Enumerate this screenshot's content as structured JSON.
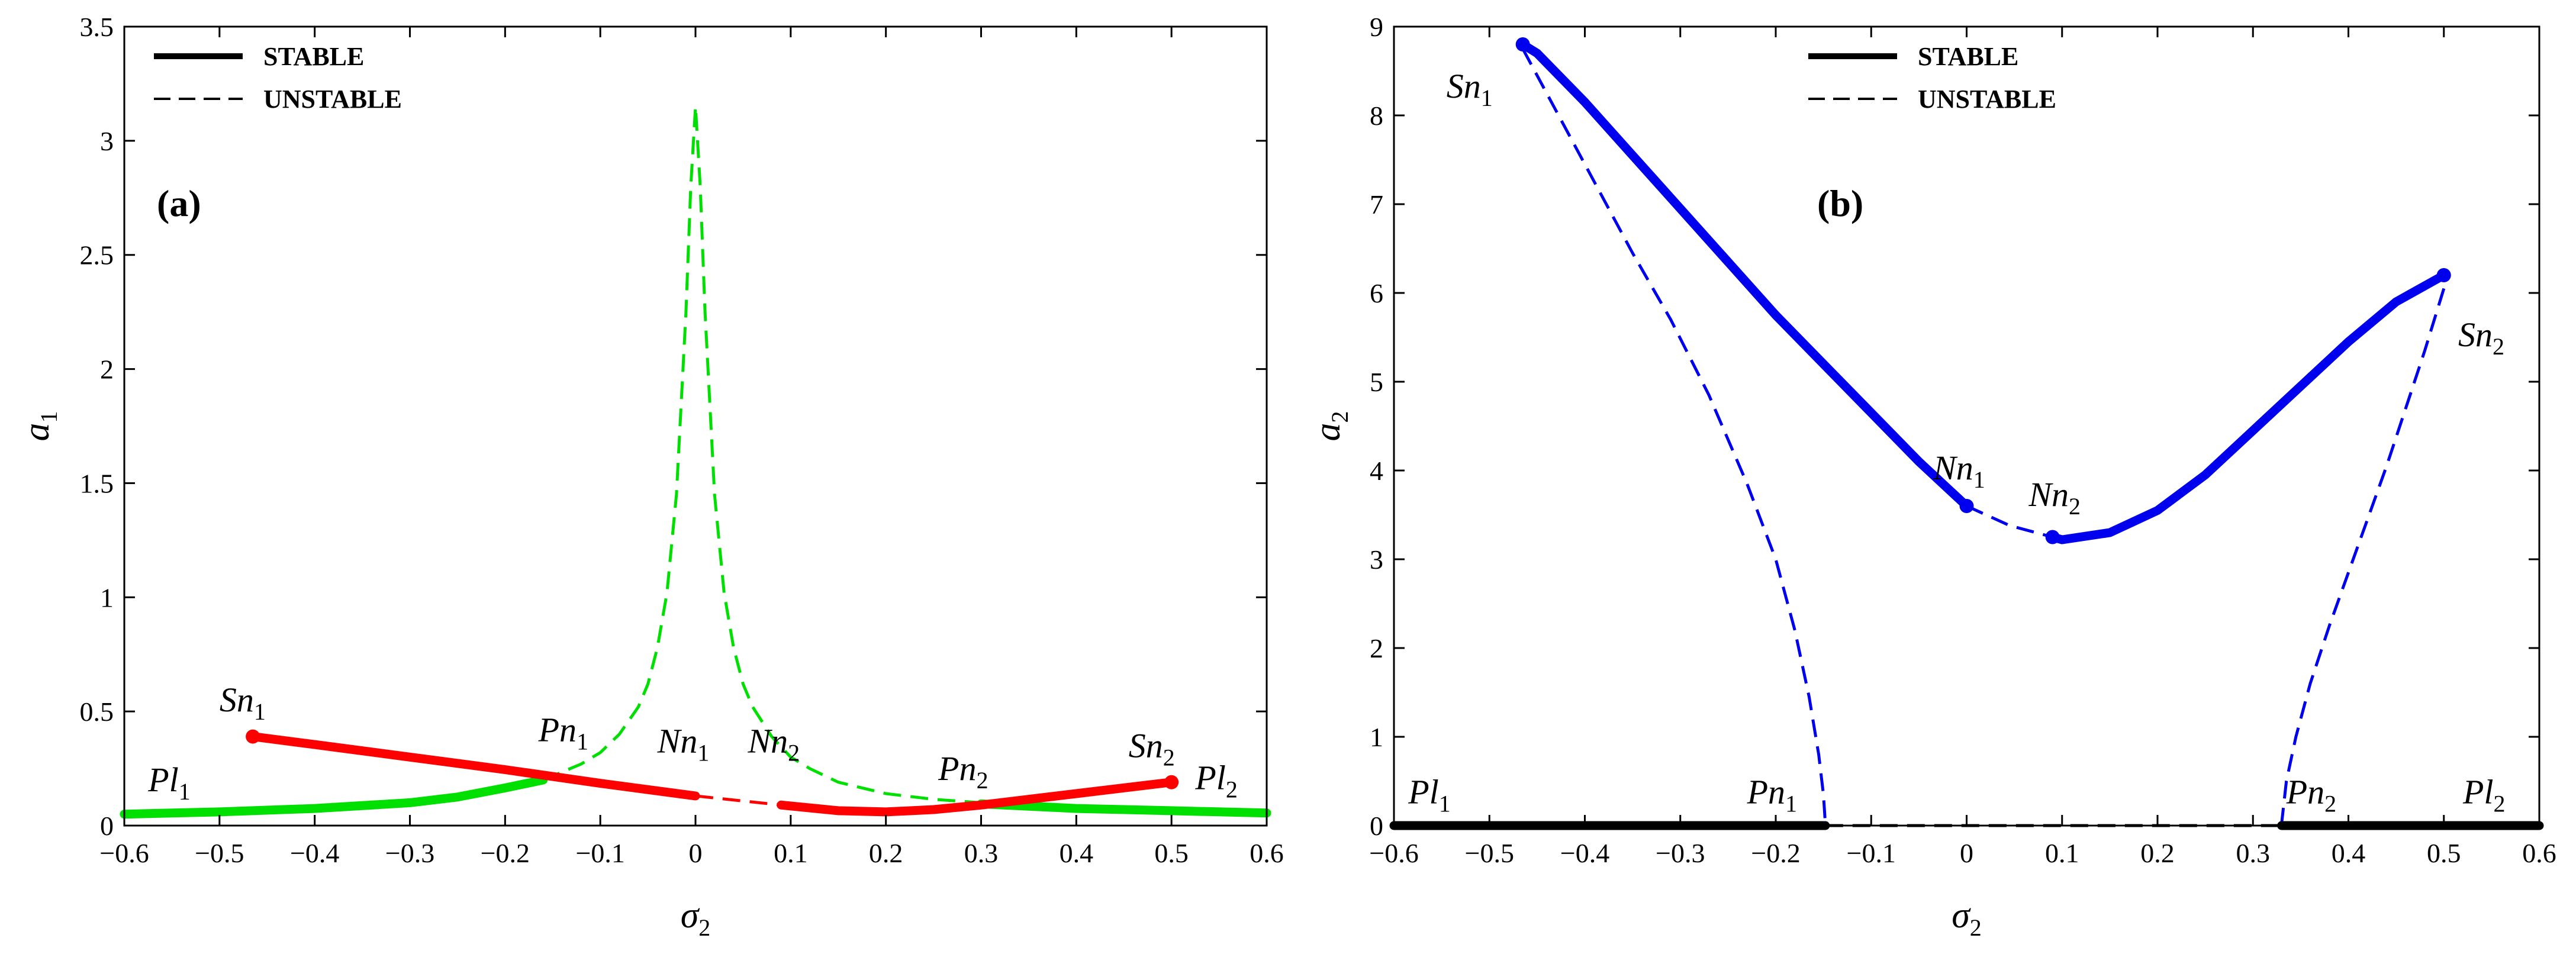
{
  "chart_data": [
    {
      "type": "line",
      "panel_label": "(a)",
      "xlabel": "σ",
      "xlabel_sub": "2",
      "ylabel": "a",
      "ylabel_sub": "1",
      "xlim": [
        -0.6,
        0.6
      ],
      "ylim": [
        0,
        3.5
      ],
      "xticks": [
        -0.6,
        -0.5,
        -0.4,
        -0.3,
        -0.2,
        -0.1,
        0,
        0.1,
        0.2,
        0.3,
        0.4,
        0.5,
        0.6
      ],
      "xtick_labels": [
        "−0.6",
        "−0.5",
        "−0.4",
        "−0.3",
        "−0.2",
        "−0.1",
        "0",
        "0.1",
        "0.2",
        "0.3",
        "0.4",
        "0.5",
        "0.6"
      ],
      "yticks": [
        0,
        0.5,
        1,
        1.5,
        2,
        2.5,
        3,
        3.5
      ],
      "ytick_labels": [
        "0",
        "0.5",
        "1",
        "1.5",
        "2",
        "2.5",
        "3",
        "3.5"
      ],
      "legend": [
        {
          "label": "STABLE",
          "style": "solid"
        },
        {
          "label": "UNSTABLE",
          "style": "dashed"
        }
      ],
      "series": [
        {
          "name": "green stable left",
          "color": "#00e000",
          "style": "solid",
          "x": [
            -0.6,
            -0.5,
            -0.4,
            -0.3,
            -0.25,
            -0.2,
            -0.16
          ],
          "y": [
            0.05,
            0.06,
            0.075,
            0.1,
            0.125,
            0.165,
            0.2
          ]
        },
        {
          "name": "green unstable resonance",
          "color": "#00e000",
          "style": "dashed",
          "x": [
            -0.16,
            -0.12,
            -0.1,
            -0.08,
            -0.06,
            -0.05,
            -0.04,
            -0.03,
            -0.02,
            -0.01,
            -0.005,
            0,
            0.005,
            0.01,
            0.02,
            0.03,
            0.04,
            0.05,
            0.06,
            0.08,
            0.1,
            0.12,
            0.15,
            0.2,
            0.25,
            0.3,
            0.35
          ],
          "y": [
            0.2,
            0.27,
            0.32,
            0.4,
            0.52,
            0.62,
            0.78,
            1.02,
            1.45,
            2.25,
            2.8,
            3.15,
            2.8,
            2.25,
            1.45,
            1.02,
            0.78,
            0.62,
            0.52,
            0.39,
            0.3,
            0.25,
            0.19,
            0.14,
            0.115,
            0.1,
            0.09
          ]
        },
        {
          "name": "green stable right",
          "color": "#00e000",
          "style": "solid",
          "x": [
            0.3,
            0.35,
            0.4,
            0.5,
            0.6
          ],
          "y": [
            0.095,
            0.085,
            0.075,
            0.065,
            0.055
          ]
        },
        {
          "name": "red stable left",
          "color": "#ff0000",
          "style": "solid",
          "x": [
            -0.465,
            -0.4,
            -0.3,
            -0.2,
            -0.1,
            0
          ],
          "y": [
            0.39,
            0.355,
            0.3,
            0.245,
            0.185,
            0.13
          ]
        },
        {
          "name": "red unstable",
          "color": "#ff0000",
          "style": "dashed",
          "x": [
            0,
            0.045,
            0.09
          ],
          "y": [
            0.13,
            0.11,
            0.09
          ]
        },
        {
          "name": "red stable right",
          "color": "#ff0000",
          "style": "solid",
          "x": [
            0.09,
            0.15,
            0.2,
            0.25,
            0.3,
            0.4,
            0.5
          ],
          "y": [
            0.09,
            0.065,
            0.06,
            0.07,
            0.09,
            0.14,
            0.19
          ]
        }
      ],
      "end_markers": [
        {
          "x": -0.465,
          "y": 0.39,
          "color": "#ff0000"
        },
        {
          "x": 0.5,
          "y": 0.19,
          "color": "#ff0000"
        }
      ],
      "annotations": [
        {
          "text": "Sn",
          "sub": "1",
          "x": -0.5,
          "y": 0.5
        },
        {
          "text": "Pn",
          "sub": "1",
          "x": -0.165,
          "y": 0.37
        },
        {
          "text": "Nn",
          "sub": "1",
          "x": -0.04,
          "y": 0.32
        },
        {
          "text": "Nn",
          "sub": "2",
          "x": 0.055,
          "y": 0.32
        },
        {
          "text": "Pn",
          "sub": "2",
          "x": 0.255,
          "y": 0.2
        },
        {
          "text": "Sn",
          "sub": "2",
          "x": 0.455,
          "y": 0.3
        },
        {
          "text": "Pl",
          "sub": "1",
          "x": -0.575,
          "y": 0.15
        },
        {
          "text": "Pl",
          "sub": "2",
          "x": 0.525,
          "y": 0.16
        }
      ]
    },
    {
      "type": "line",
      "panel_label": "(b)",
      "xlabel": "σ",
      "xlabel_sub": "2",
      "ylabel": "a",
      "ylabel_sub": "2",
      "xlim": [
        -0.6,
        0.6
      ],
      "ylim": [
        0,
        9
      ],
      "xticks": [
        -0.6,
        -0.5,
        -0.4,
        -0.3,
        -0.2,
        -0.1,
        0,
        0.1,
        0.2,
        0.3,
        0.4,
        0.5,
        0.6
      ],
      "xtick_labels": [
        "−0.6",
        "−0.5",
        "−0.4",
        "−0.3",
        "−0.2",
        "−0.1",
        "0",
        "0.1",
        "0.2",
        "0.3",
        "0.4",
        "0.5",
        "0.6"
      ],
      "yticks": [
        0,
        1,
        2,
        3,
        4,
        5,
        6,
        7,
        8,
        9
      ],
      "ytick_labels": [
        "0",
        "1",
        "2",
        "3",
        "4",
        "5",
        "6",
        "7",
        "8",
        "9"
      ],
      "legend": [
        {
          "label": "STABLE",
          "style": "solid"
        },
        {
          "label": "UNSTABLE",
          "style": "dashed"
        }
      ],
      "series": [
        {
          "name": "blue stable left",
          "color": "#0000ee",
          "style": "solid",
          "x": [
            -0.465,
            -0.45,
            -0.4,
            -0.35,
            -0.3,
            -0.25,
            -0.2,
            -0.15,
            -0.1,
            -0.05,
            0
          ],
          "y": [
            8.8,
            8.7,
            8.15,
            7.55,
            6.95,
            6.35,
            5.75,
            5.2,
            4.65,
            4.1,
            3.6
          ]
        },
        {
          "name": "blue unstable middle",
          "color": "#0000ee",
          "style": "dashed",
          "x": [
            0,
            0.045,
            0.09
          ],
          "y": [
            3.6,
            3.38,
            3.25
          ]
        },
        {
          "name": "blue stable right",
          "color": "#0000ee",
          "style": "solid",
          "x": [
            0.09,
            0.1,
            0.15,
            0.2,
            0.25,
            0.3,
            0.35,
            0.4,
            0.45,
            0.5
          ],
          "y": [
            3.25,
            3.22,
            3.3,
            3.55,
            3.95,
            4.45,
            4.95,
            5.45,
            5.9,
            6.2
          ]
        },
        {
          "name": "blue unstable left branch",
          "color": "#0000ee",
          "style": "dashed",
          "x": [
            -0.465,
            -0.43,
            -0.39,
            -0.35,
            -0.31,
            -0.27,
            -0.23,
            -0.2,
            -0.18,
            -0.165,
            -0.155,
            -0.15,
            -0.148
          ],
          "y": [
            8.75,
            8.05,
            7.25,
            6.45,
            5.7,
            4.85,
            3.85,
            3.0,
            2.2,
            1.45,
            0.8,
            0.35,
            0.02
          ]
        },
        {
          "name": "blue unstable right branch",
          "color": "#0000ee",
          "style": "dashed",
          "x": [
            0.5,
            0.48,
            0.46,
            0.44,
            0.42,
            0.4,
            0.38,
            0.36,
            0.345,
            0.335,
            0.33
          ],
          "y": [
            6.05,
            5.35,
            4.7,
            4.05,
            3.45,
            2.85,
            2.25,
            1.6,
            1.0,
            0.5,
            0.02
          ]
        },
        {
          "name": "black stable left",
          "color": "#000000",
          "style": "solid",
          "x": [
            -0.6,
            -0.148
          ],
          "y": [
            0,
            0
          ]
        },
        {
          "name": "black unstable middle",
          "color": "#000000",
          "style": "dashed",
          "x": [
            -0.148,
            0.33
          ],
          "y": [
            0,
            0
          ]
        },
        {
          "name": "black stable right",
          "color": "#000000",
          "style": "solid",
          "x": [
            0.33,
            0.6
          ],
          "y": [
            0,
            0
          ]
        }
      ],
      "end_markers": [
        {
          "x": -0.465,
          "y": 8.8,
          "color": "#0000ee"
        },
        {
          "x": 0.5,
          "y": 6.2,
          "color": "#0000ee"
        },
        {
          "x": 0,
          "y": 3.6,
          "color": "#0000ee"
        },
        {
          "x": 0.09,
          "y": 3.25,
          "color": "#0000ee"
        }
      ],
      "annotations": [
        {
          "text": "Sn",
          "sub": "1",
          "x": -0.545,
          "y": 8.2
        },
        {
          "text": "Sn",
          "sub": "2",
          "x": 0.515,
          "y": 5.4
        },
        {
          "text": "Nn",
          "sub": "1",
          "x": -0.035,
          "y": 3.9
        },
        {
          "text": "Nn",
          "sub": "2",
          "x": 0.065,
          "y": 3.6
        },
        {
          "text": "Pl",
          "sub": "1",
          "x": -0.585,
          "y": 0.25
        },
        {
          "text": "Pn",
          "sub": "1",
          "x": -0.23,
          "y": 0.25
        },
        {
          "text": "Pn",
          "sub": "2",
          "x": 0.335,
          "y": 0.25
        },
        {
          "text": "Pl",
          "sub": "2",
          "x": 0.52,
          "y": 0.25
        }
      ]
    }
  ]
}
